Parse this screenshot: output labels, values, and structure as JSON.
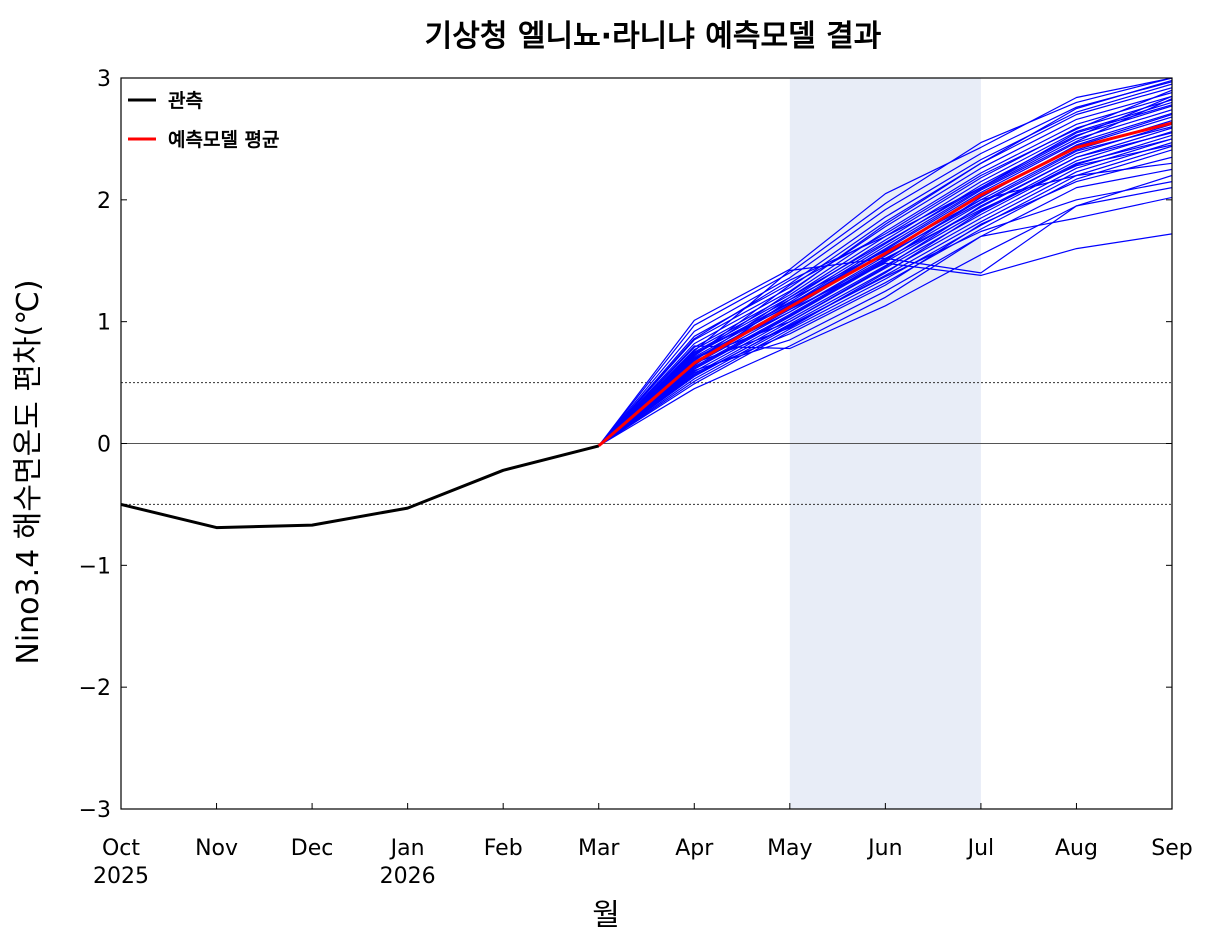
{
  "chart_data": {
    "type": "line",
    "title": "기상청 엘니뇨·라니냐 예측모델 결과",
    "xlabel": "월",
    "ylabel": "Nino3.4 해수면온도 편차(℃)",
    "categories": [
      {
        "month": "Oct",
        "year": "2025"
      },
      {
        "month": "Nov",
        "year": ""
      },
      {
        "month": "Dec",
        "year": ""
      },
      {
        "month": "Jan",
        "year": "2026"
      },
      {
        "month": "Feb",
        "year": ""
      },
      {
        "month": "Mar",
        "year": ""
      },
      {
        "month": "Apr",
        "year": ""
      },
      {
        "month": "May",
        "year": ""
      },
      {
        "month": "Jun",
        "year": ""
      },
      {
        "month": "Jul",
        "year": ""
      },
      {
        "month": "Aug",
        "year": ""
      },
      {
        "month": "Sep",
        "year": ""
      }
    ],
    "ylim": [
      -3,
      3
    ],
    "yticks": [
      -3,
      -2,
      -1,
      0,
      1,
      2,
      3
    ],
    "ytick_labels": [
      "−3",
      "−2",
      "−1",
      "0",
      "1",
      "2",
      "3"
    ],
    "reference_lines": [
      {
        "y": 0,
        "style": "solid"
      },
      {
        "y": 0.5,
        "style": "dotted"
      },
      {
        "y": -0.5,
        "style": "dotted"
      }
    ],
    "shaded_period": {
      "from": "May",
      "to": "Jul",
      "color": "#e8edf7"
    },
    "legend": {
      "position": "top-left",
      "entries": [
        {
          "label": "관측",
          "color": "#000000"
        },
        {
          "label": "예측모델 평균",
          "color": "#ff0000"
        }
      ]
    },
    "observed": {
      "label": "관측",
      "color": "#000000",
      "x": [
        "Oct",
        "Nov",
        "Dec",
        "Jan",
        "Feb",
        "Mar"
      ],
      "values": [
        -0.5,
        -0.69,
        -0.67,
        -0.53,
        -0.22,
        -0.02
      ]
    },
    "model_mean": {
      "label": "예측모델 평균",
      "color": "#ff0000",
      "x": [
        "Mar",
        "Apr",
        "May",
        "Jun",
        "Jul",
        "Aug",
        "Sep"
      ],
      "values": [
        -0.02,
        0.66,
        1.12,
        1.56,
        2.04,
        2.43,
        2.63
      ]
    },
    "ensemble": {
      "color": "#0000ff",
      "x": [
        "Mar",
        "Apr",
        "May",
        "Jun",
        "Jul",
        "Aug",
        "Sep"
      ],
      "members": [
        [
          -0.02,
          1.01,
          1.43,
          2.05,
          2.43,
          2.84,
          3.0
        ],
        [
          -0.02,
          0.97,
          1.4,
          1.97,
          2.47,
          2.8,
          3.0
        ],
        [
          -0.02,
          0.92,
          1.36,
          1.92,
          2.38,
          2.76,
          2.97
        ],
        [
          -0.02,
          0.88,
          1.31,
          1.86,
          2.33,
          2.72,
          2.95
        ],
        [
          -0.02,
          0.85,
          1.28,
          1.82,
          2.3,
          2.7,
          2.92
        ],
        [
          -0.02,
          0.82,
          1.25,
          1.78,
          2.26,
          2.66,
          2.88
        ],
        [
          -0.02,
          0.79,
          1.22,
          1.74,
          2.22,
          2.62,
          2.85
        ],
        [
          -0.02,
          0.77,
          1.2,
          1.7,
          2.18,
          2.59,
          2.82
        ],
        [
          -0.02,
          0.75,
          1.18,
          1.67,
          2.15,
          2.56,
          2.8
        ],
        [
          -0.02,
          0.73,
          1.16,
          1.64,
          2.12,
          2.53,
          2.77
        ],
        [
          -0.02,
          0.71,
          1.14,
          1.62,
          2.09,
          2.5,
          2.74
        ],
        [
          -0.02,
          0.69,
          1.12,
          1.59,
          2.06,
          2.47,
          2.71
        ],
        [
          -0.02,
          0.67,
          1.1,
          1.57,
          2.03,
          2.44,
          2.68
        ],
        [
          -0.02,
          0.65,
          1.08,
          1.54,
          2.0,
          2.41,
          2.65
        ],
        [
          -0.02,
          0.63,
          1.06,
          1.51,
          1.97,
          2.38,
          2.62
        ],
        [
          -0.02,
          0.61,
          1.04,
          1.49,
          1.94,
          2.35,
          2.59
        ],
        [
          -0.02,
          0.59,
          1.02,
          1.46,
          1.91,
          2.32,
          2.56
        ],
        [
          -0.02,
          0.57,
          1.0,
          1.44,
          1.88,
          2.29,
          2.53
        ],
        [
          -0.02,
          0.55,
          0.98,
          1.41,
          1.85,
          2.26,
          2.5
        ],
        [
          -0.02,
          0.53,
          0.96,
          1.38,
          1.82,
          2.23,
          2.47
        ],
        [
          -0.02,
          0.51,
          0.94,
          1.35,
          1.79,
          2.2,
          2.44
        ],
        [
          -0.02,
          0.49,
          0.92,
          1.32,
          1.76,
          2.17,
          2.41
        ],
        [
          -0.02,
          0.72,
          1.3,
          1.72,
          2.2,
          2.58,
          2.9
        ],
        [
          -0.02,
          0.68,
          1.2,
          1.65,
          2.1,
          2.52,
          2.85
        ],
        [
          -0.02,
          0.7,
          1.0,
          1.45,
          1.95,
          2.35,
          2.55
        ],
        [
          -0.02,
          0.66,
          0.95,
          1.4,
          1.9,
          2.3,
          2.5
        ],
        [
          -0.02,
          0.74,
          1.15,
          1.55,
          1.98,
          2.4,
          2.6
        ],
        [
          -0.02,
          0.62,
          1.05,
          1.5,
          2.02,
          2.45,
          2.7
        ],
        [
          -0.02,
          0.8,
          0.78,
          1.13,
          1.55,
          1.95,
          2.2
        ],
        [
          -0.02,
          0.6,
          0.85,
          1.25,
          1.7,
          2.1,
          2.25
        ],
        [
          -0.02,
          0.7,
          1.1,
          1.48,
          1.38,
          1.6,
          1.72
        ],
        [
          -0.02,
          0.45,
          0.8,
          1.2,
          1.7,
          1.85,
          2.02
        ],
        [
          -0.02,
          0.58,
          0.9,
          1.3,
          1.8,
          2.15,
          2.35
        ],
        [
          -0.02,
          0.76,
          1.42,
          1.52,
          1.4,
          1.95,
          2.1
        ],
        [
          -0.02,
          0.64,
          1.18,
          1.58,
          2.0,
          2.2,
          2.3
        ],
        [
          -0.02,
          0.86,
          1.34,
          1.7,
          2.1,
          2.55,
          2.78
        ],
        [
          -0.02,
          0.69,
          1.08,
          1.52,
          1.92,
          2.28,
          2.45
        ],
        [
          -0.02,
          0.72,
          1.24,
          1.8,
          2.3,
          2.75,
          2.98
        ],
        [
          -0.02,
          0.56,
          0.97,
          1.37,
          1.74,
          2.0,
          2.15
        ],
        [
          -0.02,
          0.74,
          1.13,
          1.6,
          2.08,
          2.48,
          2.83
        ]
      ]
    }
  }
}
